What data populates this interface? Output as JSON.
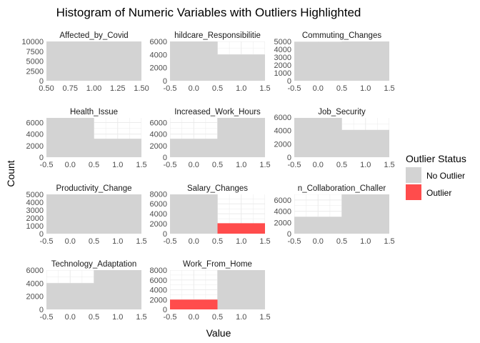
{
  "title": "Histogram of Numeric Variables with Outliers Highlighted",
  "xlabel": "Value",
  "ylabel": "Count",
  "legend": {
    "title": "Outlier Status",
    "position": "right",
    "items": [
      {
        "label": "No Outlier",
        "color": "#d3d3d3"
      },
      {
        "label": "Outlier",
        "color": "#ff4c4c"
      }
    ]
  },
  "colors": {
    "no_outlier": "#d3d3d3",
    "outlier": "#ff4c4c",
    "grid": "#ebebeb",
    "tick_text": "#4d4d4d"
  },
  "chart_data": {
    "type": "bar",
    "layout": "facet-grid 4 rows x 3 columns",
    "grid": true,
    "panels": [
      {
        "strip": "Affected_by_Covid",
        "xlim": [
          0.5,
          1.5
        ],
        "xticks": [
          "0.50",
          "0.75",
          "1.00",
          "1.25",
          "1.50"
        ],
        "ylim": [
          0,
          10000
        ],
        "yticks": [
          0,
          2500,
          5000,
          7500,
          10000
        ],
        "bars": [
          {
            "x0": 0.5,
            "x1": 1.5,
            "count": 10000,
            "outlier": false
          }
        ]
      },
      {
        "strip": "hildcare_Responsibilitie",
        "xlim": [
          -0.5,
          1.5
        ],
        "xticks": [
          "-0.5",
          "0.0",
          "0.5",
          "1.0",
          "1.5"
        ],
        "ylim": [
          0,
          6000
        ],
        "yticks": [
          0,
          2000,
          4000,
          6000
        ],
        "bars": [
          {
            "x0": -0.5,
            "x1": 0.5,
            "count": 6000,
            "outlier": false
          },
          {
            "x0": 0.5,
            "x1": 1.5,
            "count": 4000,
            "outlier": false
          }
        ]
      },
      {
        "strip": "Commuting_Changes",
        "xlim": [
          -0.5,
          1.5
        ],
        "xticks": [
          "-0.5",
          "0.0",
          "0.5",
          "1.0",
          "1.5"
        ],
        "ylim": [
          0,
          5000
        ],
        "yticks": [
          0,
          1000,
          2000,
          3000,
          4000,
          5000
        ],
        "bars": [
          {
            "x0": -0.5,
            "x1": 0.5,
            "count": 4950,
            "outlier": false
          },
          {
            "x0": 0.5,
            "x1": 1.5,
            "count": 5050,
            "outlier": false
          }
        ]
      },
      {
        "strip": "Health_Issue",
        "xlim": [
          -0.5,
          1.5
        ],
        "xticks": [
          "-0.5",
          "0.0",
          "0.5",
          "1.0",
          "1.5"
        ],
        "ylim": [
          0,
          6800
        ],
        "yticks": [
          0,
          2000,
          4000,
          6000
        ],
        "bars": [
          {
            "x0": -0.5,
            "x1": 0.5,
            "count": 6800,
            "outlier": false
          },
          {
            "x0": 0.5,
            "x1": 1.5,
            "count": 3200,
            "outlier": false
          }
        ]
      },
      {
        "strip": "Increased_Work_Hours",
        "xlim": [
          -0.5,
          1.5
        ],
        "xticks": [
          "-0.5",
          "0.0",
          "0.5",
          "1.0",
          "1.5"
        ],
        "ylim": [
          0,
          6800
        ],
        "yticks": [
          0,
          2000,
          4000,
          6000
        ],
        "bars": [
          {
            "x0": -0.5,
            "x1": 0.5,
            "count": 3200,
            "outlier": false
          },
          {
            "x0": 0.5,
            "x1": 1.5,
            "count": 6800,
            "outlier": false
          }
        ]
      },
      {
        "strip": "Job_Security",
        "xlim": [
          -0.5,
          1.5
        ],
        "xticks": [
          "-0.5",
          "0.0",
          "0.5",
          "1.0",
          "1.5"
        ],
        "ylim": [
          0,
          5900
        ],
        "yticks": [
          0,
          2000,
          4000,
          6000
        ],
        "bars": [
          {
            "x0": -0.5,
            "x1": 0.5,
            "count": 5900,
            "outlier": false
          },
          {
            "x0": 0.5,
            "x1": 1.5,
            "count": 4100,
            "outlier": false
          }
        ]
      },
      {
        "strip": "Productivity_Change",
        "xlim": [
          -0.5,
          1.5
        ],
        "xticks": [
          "-0.5",
          "0.0",
          "0.5",
          "1.0",
          "1.5"
        ],
        "ylim": [
          0,
          5000
        ],
        "yticks": [
          0,
          1000,
          2000,
          3000,
          4000,
          5000
        ],
        "bars": [
          {
            "x0": -0.5,
            "x1": 0.5,
            "count": 5000,
            "outlier": false
          },
          {
            "x0": 0.5,
            "x1": 1.5,
            "count": 5000,
            "outlier": false
          }
        ]
      },
      {
        "strip": "Salary_Changes",
        "xlim": [
          -0.5,
          1.5
        ],
        "xticks": [
          "-0.5",
          "0.0",
          "0.5",
          "1.0",
          "1.5"
        ],
        "ylim": [
          0,
          7900
        ],
        "yticks": [
          0,
          2000,
          4000,
          6000,
          8000
        ],
        "bars": [
          {
            "x0": -0.5,
            "x1": 0.5,
            "count": 7900,
            "outlier": false
          },
          {
            "x0": 0.5,
            "x1": 1.5,
            "count": 2100,
            "outlier": true
          }
        ]
      },
      {
        "strip": "n_Collaboration_Challer",
        "xlim": [
          -0.5,
          1.5
        ],
        "xticks": [
          "-0.5",
          "0.0",
          "0.5",
          "1.0",
          "1.5"
        ],
        "ylim": [
          0,
          7000
        ],
        "yticks": [
          0,
          2000,
          4000,
          6000
        ],
        "bars": [
          {
            "x0": -0.5,
            "x1": 0.5,
            "count": 3000,
            "outlier": false
          },
          {
            "x0": 0.5,
            "x1": 1.5,
            "count": 7000,
            "outlier": false
          }
        ]
      },
      {
        "strip": "Technology_Adaptation",
        "xlim": [
          -0.5,
          1.5
        ],
        "xticks": [
          "-0.5",
          "0.0",
          "0.5",
          "1.0",
          "1.5"
        ],
        "ylim": [
          0,
          6000
        ],
        "yticks": [
          0,
          2000,
          4000,
          6000
        ],
        "bars": [
          {
            "x0": -0.5,
            "x1": 0.5,
            "count": 4000,
            "outlier": false
          },
          {
            "x0": 0.5,
            "x1": 1.5,
            "count": 6000,
            "outlier": false
          }
        ]
      },
      {
        "strip": "Work_From_Home",
        "xlim": [
          -0.5,
          1.5
        ],
        "xticks": [
          "-0.5",
          "0.0",
          "0.5",
          "1.0",
          "1.5"
        ],
        "ylim": [
          0,
          8000
        ],
        "yticks": [
          0,
          2000,
          4000,
          6000,
          8000
        ],
        "bars": [
          {
            "x0": -0.5,
            "x1": 0.5,
            "count": 2000,
            "outlier": true
          },
          {
            "x0": 0.5,
            "x1": 1.5,
            "count": 8000,
            "outlier": false
          }
        ]
      }
    ]
  }
}
